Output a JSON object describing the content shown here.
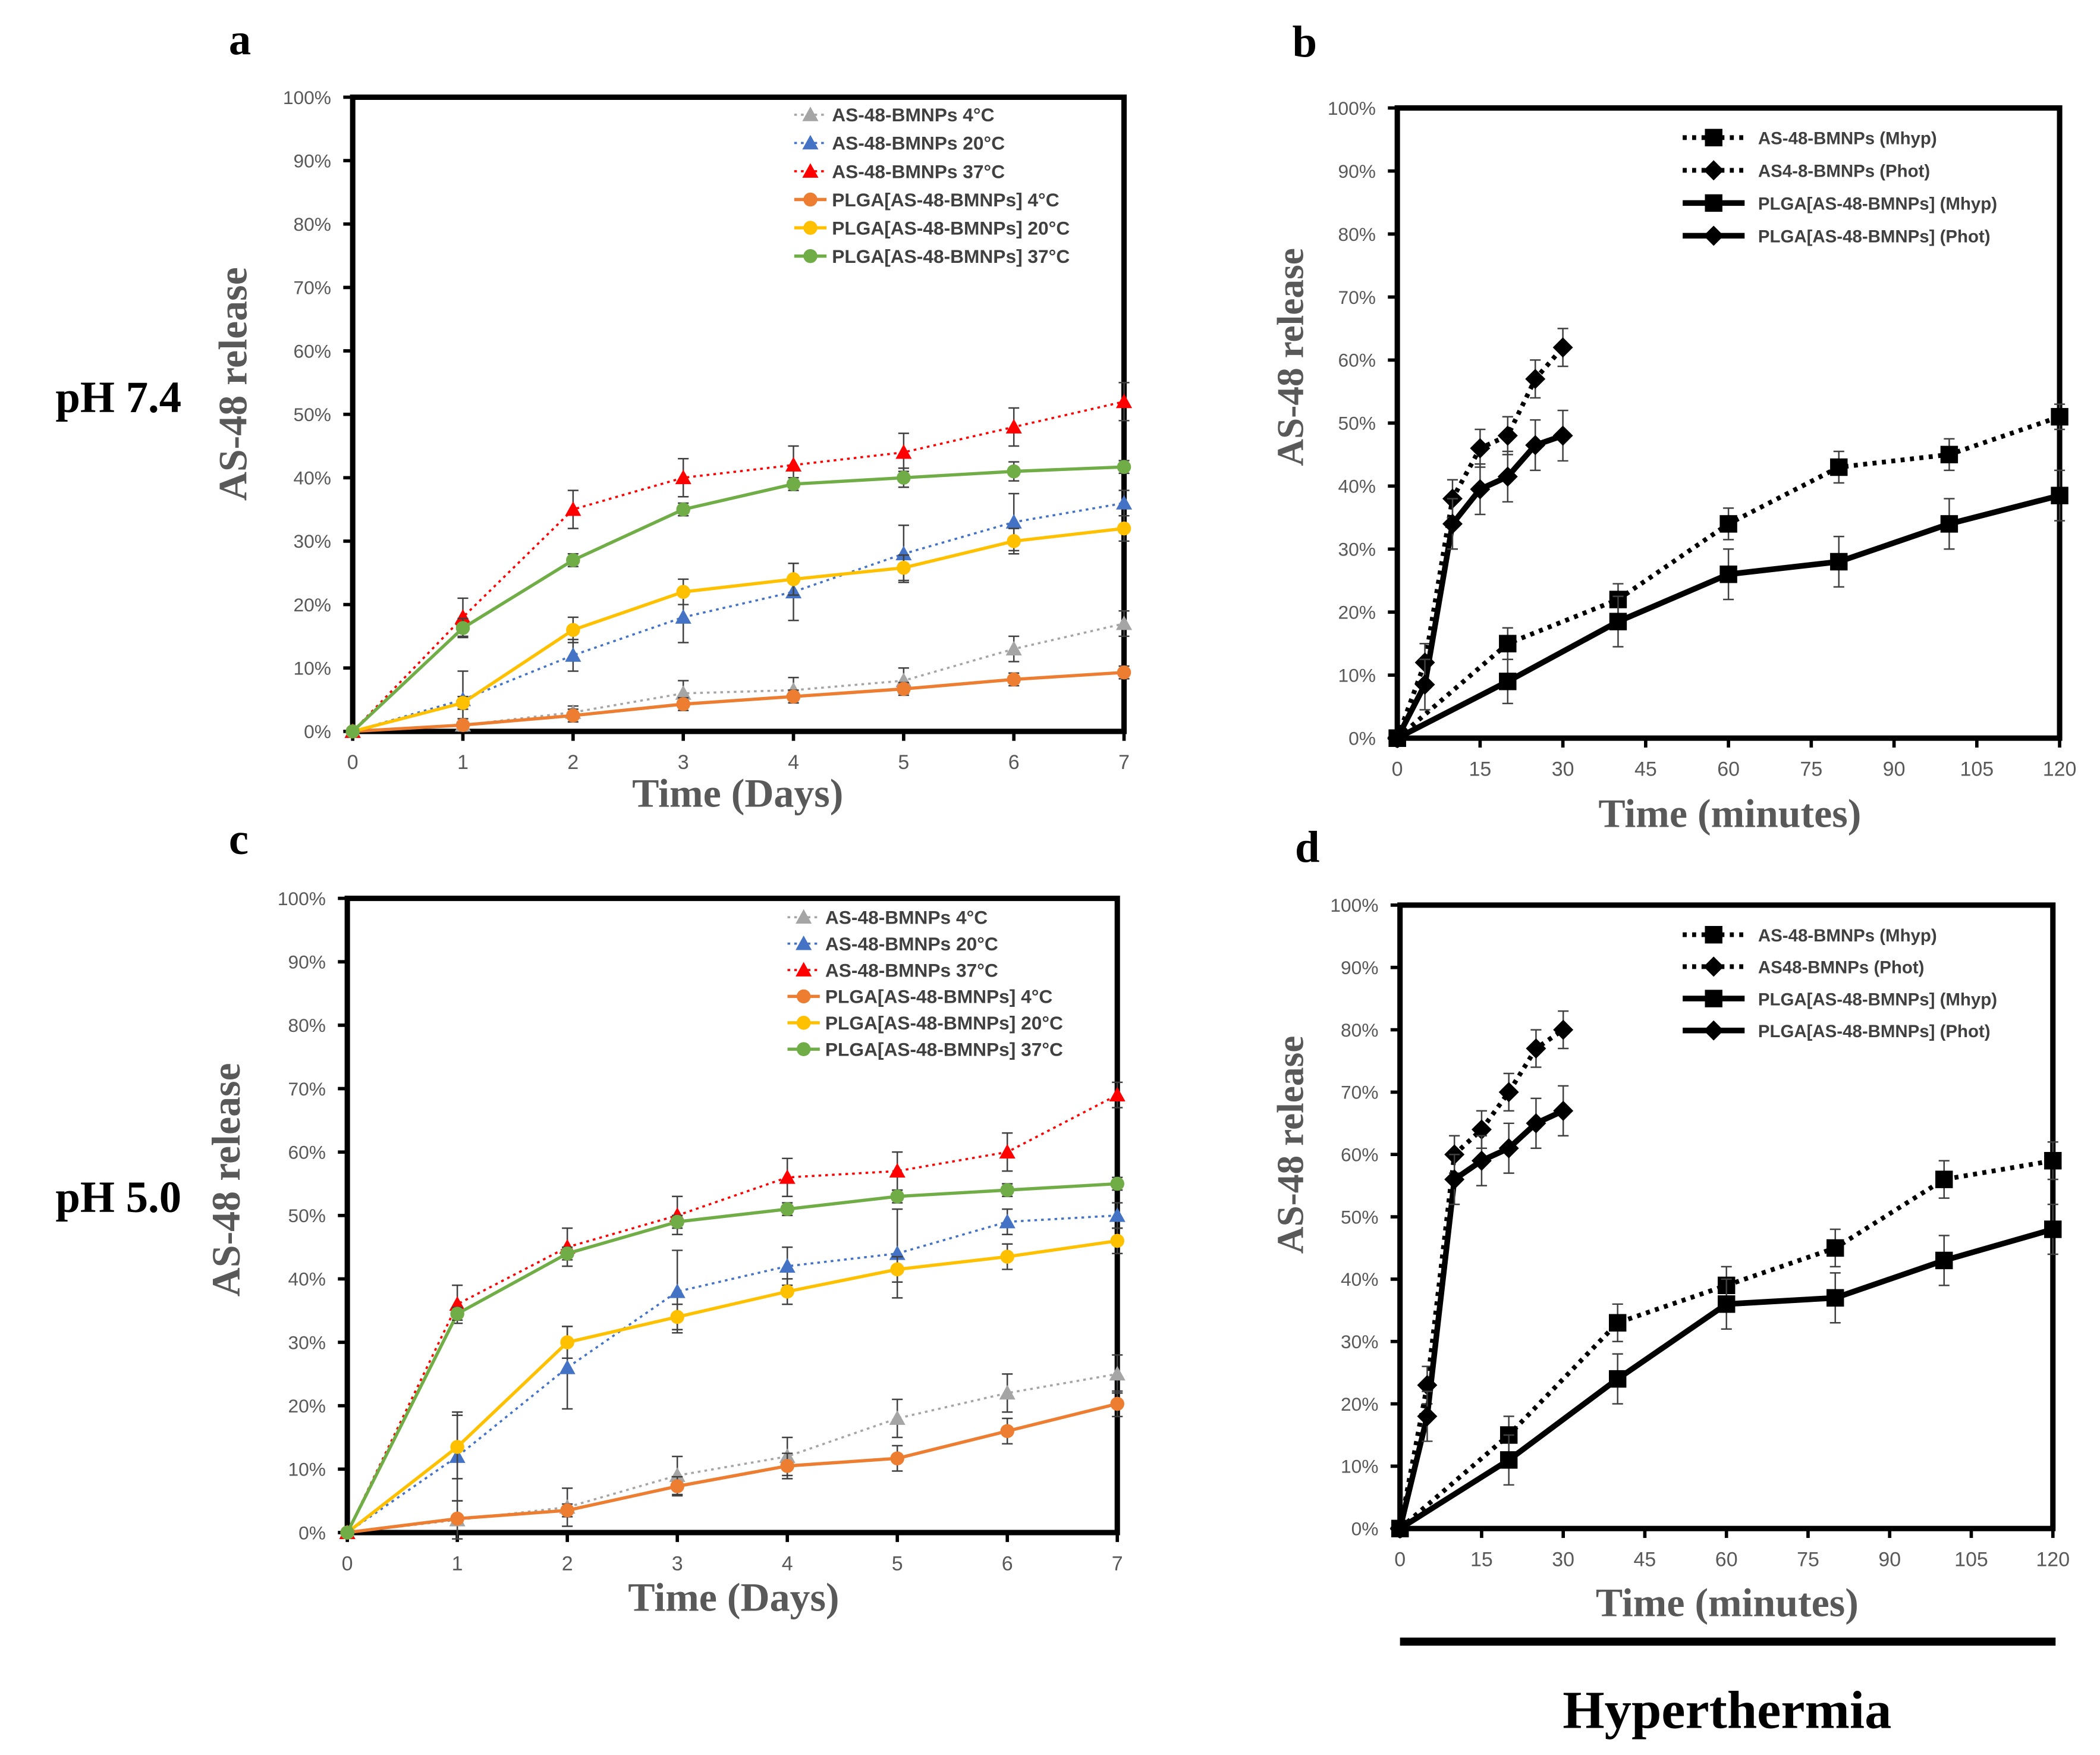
{
  "figure": {
    "row_labels": [
      "pH 7.4",
      "pH 5.0"
    ],
    "footer_label": "Hyperthermia"
  },
  "chart_data": [
    {
      "panel": "a",
      "type": "line",
      "xlabel": "Time (Days)",
      "ylabel": "AS-48 release",
      "xlim": [
        0,
        7
      ],
      "ylim": [
        0,
        100
      ],
      "xticks": [
        0,
        1,
        2,
        3,
        4,
        5,
        6,
        7
      ],
      "yticks": [
        0,
        10,
        20,
        30,
        40,
        50,
        60,
        70,
        80,
        90,
        100
      ],
      "ytick_labels": [
        "0%",
        "10%",
        "20%",
        "30%",
        "40%",
        "50%",
        "60%",
        "70%",
        "80%",
        "90%",
        "100%"
      ],
      "legend": "top-right",
      "series": [
        {
          "name": "AS-48-BMNPs 4°C",
          "color": "#A5A5A5",
          "dotted": true,
          "marker": "triangle",
          "x": [
            0,
            1,
            2,
            3,
            4,
            5,
            6,
            7
          ],
          "values": [
            0,
            1,
            3,
            6,
            6.5,
            8,
            13,
            17
          ],
          "errors": [
            0,
            1,
            1,
            2,
            2,
            2,
            2,
            2
          ]
        },
        {
          "name": "AS-48-BMNPs 20°C",
          "color": "#4472C4",
          "dotted": true,
          "marker": "triangle",
          "x": [
            0,
            1,
            2,
            3,
            4,
            5,
            6,
            7
          ],
          "values": [
            0,
            5,
            12,
            18,
            22,
            28,
            33,
            36
          ],
          "errors": [
            0,
            4.5,
            2.5,
            4,
            4.5,
            4.5,
            4.5,
            2
          ]
        },
        {
          "name": "AS-48-BMNPs 37°C",
          "color": "#FF0000",
          "dotted": true,
          "marker": "triangle",
          "x": [
            0,
            1,
            2,
            3,
            4,
            5,
            6,
            7
          ],
          "values": [
            0,
            18,
            35,
            40,
            42,
            44,
            48,
            52
          ],
          "errors": [
            0,
            3,
            3,
            3,
            3,
            3,
            3,
            3
          ]
        },
        {
          "name": "PLGA[AS-48-BMNPs] 4°C",
          "color": "#ED7D31",
          "dotted": false,
          "marker": "circle",
          "x": [
            0,
            1,
            2,
            3,
            4,
            5,
            6,
            7
          ],
          "values": [
            0,
            1,
            2.5,
            4.3,
            5.5,
            6.7,
            8.2,
            9.3
          ],
          "errors": [
            0,
            0.5,
            1,
            1,
            1,
            1,
            1,
            1
          ]
        },
        {
          "name": "PLGA[AS-48-BMNPs] 20°C",
          "color": "#FFC000",
          "dotted": false,
          "marker": "circle",
          "x": [
            0,
            1,
            2,
            3,
            4,
            5,
            6,
            7
          ],
          "values": [
            0,
            4.5,
            16,
            22,
            24,
            25.8,
            30,
            32
          ],
          "errors": [
            0,
            1,
            2,
            2,
            2.5,
            2,
            2,
            2
          ]
        },
        {
          "name": "PLGA[AS-48-BMNPs] 37°C",
          "color": "#70AD47",
          "dotted": false,
          "marker": "circle",
          "x": [
            0,
            1,
            2,
            3,
            4,
            5,
            6,
            7
          ],
          "values": [
            0,
            16.3,
            27,
            35,
            39,
            40,
            41,
            41.7
          ],
          "errors": [
            0,
            1.5,
            1,
            1,
            1,
            1.5,
            1.5,
            1
          ]
        }
      ]
    },
    {
      "panel": "b",
      "type": "line",
      "xlabel": "Time (minutes)",
      "ylabel": "AS-48 release",
      "xlim": [
        0,
        120
      ],
      "ylim": [
        0,
        100
      ],
      "xticks": [
        0,
        15,
        30,
        45,
        60,
        75,
        90,
        105,
        120
      ],
      "yticks": [
        0,
        10,
        20,
        30,
        40,
        50,
        60,
        70,
        80,
        90,
        100
      ],
      "ytick_labels": [
        "0%",
        "10%",
        "20%",
        "30%",
        "40%",
        "50%",
        "60%",
        "70%",
        "80%",
        "90%",
        "100%"
      ],
      "legend": "top-right",
      "series": [
        {
          "name": "AS-48-BMNPs (Mhyp)",
          "color": "#000000",
          "dotted": true,
          "marker": "square",
          "x": [
            0,
            20,
            40,
            60,
            80,
            100,
            120
          ],
          "values": [
            0,
            15,
            22,
            34,
            43,
            45,
            51
          ],
          "errors": [
            0,
            2.5,
            2.5,
            2.5,
            2.5,
            2.5,
            2
          ]
        },
        {
          "name": "AS4-8-BMNPs (Phot)",
          "color": "#000000",
          "dotted": true,
          "marker": "diamond",
          "x": [
            0,
            5,
            10,
            15,
            20,
            25,
            30
          ],
          "values": [
            0,
            12,
            38,
            46,
            48,
            57,
            62
          ],
          "errors": [
            0,
            3,
            3,
            3,
            3,
            3,
            3
          ]
        },
        {
          "name": "PLGA[AS-48-BMNPs] (Mhyp)",
          "color": "#000000",
          "dotted": false,
          "marker": "square",
          "x": [
            0,
            20,
            40,
            60,
            80,
            100,
            120
          ],
          "values": [
            0,
            9,
            18.5,
            26,
            28,
            34,
            38.5
          ],
          "errors": [
            0,
            3.5,
            4,
            4,
            4,
            4,
            4
          ]
        },
        {
          "name": "PLGA[AS-48-BMNPs] (Phot)",
          "color": "#000000",
          "dotted": false,
          "marker": "diamond",
          "x": [
            0,
            5,
            10,
            15,
            20,
            25,
            30
          ],
          "values": [
            0,
            8.5,
            34,
            39.5,
            41.5,
            46.5,
            48
          ],
          "errors": [
            0,
            4,
            4,
            4,
            4,
            4,
            4
          ]
        }
      ]
    },
    {
      "panel": "c",
      "type": "line",
      "xlabel": "Time (Days)",
      "ylabel": "AS-48 release",
      "xlim": [
        0,
        7
      ],
      "ylim": [
        0,
        100
      ],
      "xticks": [
        0,
        1,
        2,
        3,
        4,
        5,
        6,
        7
      ],
      "yticks": [
        0,
        10,
        20,
        30,
        40,
        50,
        60,
        70,
        80,
        90,
        100
      ],
      "ytick_labels": [
        "0%",
        "10%",
        "20%",
        "30%",
        "40%",
        "50%",
        "60%",
        "70%",
        "80%",
        "90%",
        "100%"
      ],
      "legend": "top-right",
      "series": [
        {
          "name": "AS-48-BMNPs 4°C",
          "color": "#A5A5A5",
          "dotted": true,
          "marker": "triangle",
          "x": [
            0,
            1,
            2,
            3,
            4,
            5,
            6,
            7
          ],
          "values": [
            0,
            2,
            4,
            9,
            12,
            18,
            22,
            25
          ],
          "errors": [
            0,
            3,
            3,
            3,
            3,
            3,
            3,
            3
          ]
        },
        {
          "name": "AS-48-BMNPs 20°C",
          "color": "#4472C4",
          "dotted": true,
          "marker": "triangle",
          "x": [
            0,
            1,
            2,
            3,
            4,
            5,
            6,
            7
          ],
          "values": [
            0,
            12,
            26,
            38,
            42,
            44,
            49,
            50
          ],
          "errors": [
            0,
            7,
            6.5,
            6.5,
            3,
            7,
            2,
            2
          ]
        },
        {
          "name": "AS-48-BMNPs 37°C",
          "color": "#FF0000",
          "dotted": true,
          "marker": "triangle",
          "x": [
            0,
            1,
            2,
            3,
            4,
            5,
            6,
            7
          ],
          "values": [
            0,
            36,
            45,
            50,
            56,
            57,
            60,
            69
          ],
          "errors": [
            0,
            3,
            3,
            3,
            3,
            3,
            3,
            2
          ]
        },
        {
          "name": "PLGA[AS-48-BMNPs] 4°C",
          "color": "#ED7D31",
          "dotted": false,
          "marker": "circle",
          "x": [
            0,
            1,
            2,
            3,
            4,
            5,
            6,
            7
          ],
          "values": [
            0,
            2.2,
            3.5,
            7.3,
            10.5,
            11.7,
            16,
            20.3
          ],
          "errors": [
            0,
            0.5,
            1,
            1.5,
            2,
            2,
            2,
            2
          ]
        },
        {
          "name": "PLGA[AS-48-BMNPs] 20°C",
          "color": "#FFC000",
          "dotted": false,
          "marker": "circle",
          "x": [
            0,
            1,
            2,
            3,
            4,
            5,
            6,
            7
          ],
          "values": [
            0,
            13.5,
            30,
            34,
            38,
            41.5,
            43.5,
            46
          ],
          "errors": [
            0,
            5,
            2.5,
            2,
            2,
            2,
            2,
            2
          ]
        },
        {
          "name": "PLGA[AS-48-BMNPs] 37°C",
          "color": "#70AD47",
          "dotted": false,
          "marker": "circle",
          "x": [
            0,
            1,
            2,
            3,
            4,
            5,
            6,
            7
          ],
          "values": [
            0,
            34.5,
            44,
            49,
            51,
            53,
            54,
            55
          ],
          "errors": [
            0,
            1,
            1,
            1,
            1,
            1,
            1,
            1
          ]
        }
      ]
    },
    {
      "panel": "d",
      "type": "line",
      "xlabel": "Time (minutes)",
      "ylabel": "AS-48 release",
      "xlim": [
        0,
        120
      ],
      "ylim": [
        0,
        100
      ],
      "xticks": [
        0,
        15,
        30,
        45,
        60,
        75,
        90,
        105,
        120
      ],
      "yticks": [
        0,
        10,
        20,
        30,
        40,
        50,
        60,
        70,
        80,
        90,
        100
      ],
      "ytick_labels": [
        "0%",
        "10%",
        "20%",
        "30%",
        "40%",
        "50%",
        "60%",
        "70%",
        "80%",
        "90%",
        "100%"
      ],
      "legend": "top-right",
      "series": [
        {
          "name": "AS-48-BMNPs (Mhyp)",
          "color": "#000000",
          "dotted": true,
          "marker": "square",
          "x": [
            0,
            20,
            40,
            60,
            80,
            100,
            120
          ],
          "values": [
            0,
            15,
            33,
            39,
            45,
            56,
            59
          ],
          "errors": [
            0,
            3,
            3,
            3,
            3,
            3,
            3
          ]
        },
        {
          "name": "AS48-BMNPs (Phot)",
          "color": "#000000",
          "dotted": true,
          "marker": "diamond",
          "x": [
            0,
            5,
            10,
            15,
            20,
            25,
            30
          ],
          "values": [
            0,
            23,
            60,
            64,
            70,
            77,
            80
          ],
          "errors": [
            0,
            3,
            3,
            3,
            3,
            3,
            3
          ]
        },
        {
          "name": "PLGA[AS-48-BMNPs] (Mhyp)",
          "color": "#000000",
          "dotted": false,
          "marker": "square",
          "x": [
            0,
            20,
            40,
            60,
            80,
            100,
            120
          ],
          "values": [
            0,
            11,
            24,
            36,
            37,
            43,
            48
          ],
          "errors": [
            0,
            4,
            4,
            4,
            4,
            4,
            4
          ]
        },
        {
          "name": "PLGA[AS-48-BMNPs] (Phot)",
          "color": "#000000",
          "dotted": false,
          "marker": "diamond",
          "x": [
            0,
            5,
            10,
            15,
            20,
            25,
            30
          ],
          "values": [
            0,
            18,
            56,
            59,
            61,
            65,
            67
          ],
          "errors": [
            0,
            4,
            4,
            4,
            4,
            4,
            4
          ]
        }
      ]
    }
  ]
}
